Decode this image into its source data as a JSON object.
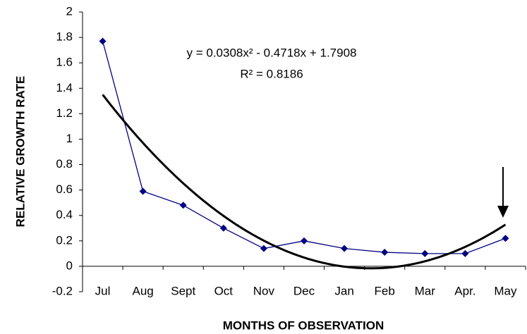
{
  "chart_data": {
    "type": "line",
    "x_label": "MONTHS OF OBSERVATION",
    "y_label": "RELATIVE GROWTH RATE",
    "categories": [
      "Jul",
      "Aug",
      "Sept",
      "Oct",
      "Nov",
      "Dec",
      "Jan",
      "Feb",
      "Mar",
      "Apr.",
      "May"
    ],
    "series": [
      {
        "color": "#000080",
        "values": [
          1.77,
          0.59,
          0.48,
          0.3,
          0.14,
          0.2,
          0.14,
          0.11,
          0.1,
          0.1,
          0.22
        ]
      }
    ],
    "trendline": {
      "equation": "y = 0.0308x² - 0.4718x + 1.7908",
      "r_squared": "R² = 0.8186",
      "coefficients": [
        0.0308,
        -0.4718,
        1.7908
      ],
      "color": "#000000"
    },
    "ylim": [
      -0.2,
      2
    ],
    "yticks": [
      -0.2,
      0,
      0.2,
      0.4,
      0.6,
      0.8,
      1,
      1.2,
      1.4,
      1.6,
      1.8,
      2
    ],
    "grid": false
  }
}
